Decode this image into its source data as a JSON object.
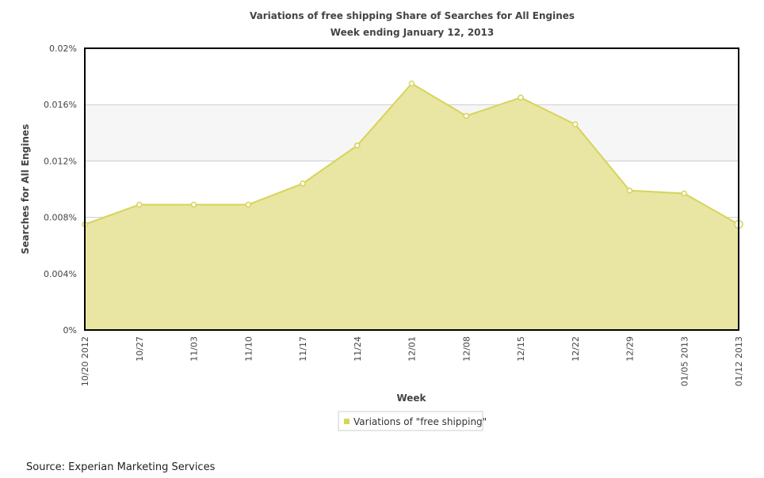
{
  "chart_data": {
    "type": "area",
    "title": "Variations of free shipping Share of Searches for All Engines",
    "subtitle": "Week ending January 12, 2013",
    "xlabel": "Week",
    "ylabel": "Searches for All Engines",
    "categories": [
      "10/20 2012",
      "10/27",
      "11/03",
      "11/10",
      "11/17",
      "11/24",
      "12/01",
      "12/08",
      "12/15",
      "12/22",
      "12/29",
      "01/05 2013",
      "01/12 2013"
    ],
    "series": [
      {
        "name": "Variations of \"free shipping\"",
        "values": [
          0.0075,
          0.0089,
          0.0089,
          0.0089,
          0.0104,
          0.0131,
          0.0175,
          0.0152,
          0.0165,
          0.0146,
          0.0099,
          0.0097,
          0.0075
        ]
      }
    ],
    "ylim": [
      0,
      0.02
    ],
    "yticks": [
      0,
      0.004,
      0.008,
      0.012,
      0.016,
      0.02
    ],
    "ytick_labels": [
      "0%",
      "0.004%",
      "0.008%",
      "0.012%",
      "0.016%",
      "0.02%"
    ],
    "grid": true,
    "legend": "bottom-center",
    "colors": {
      "line": "#d6d45a",
      "fill": "#e8e6a2",
      "band": "#f6f6f6"
    }
  },
  "source": "Source: Experian Marketing Services"
}
